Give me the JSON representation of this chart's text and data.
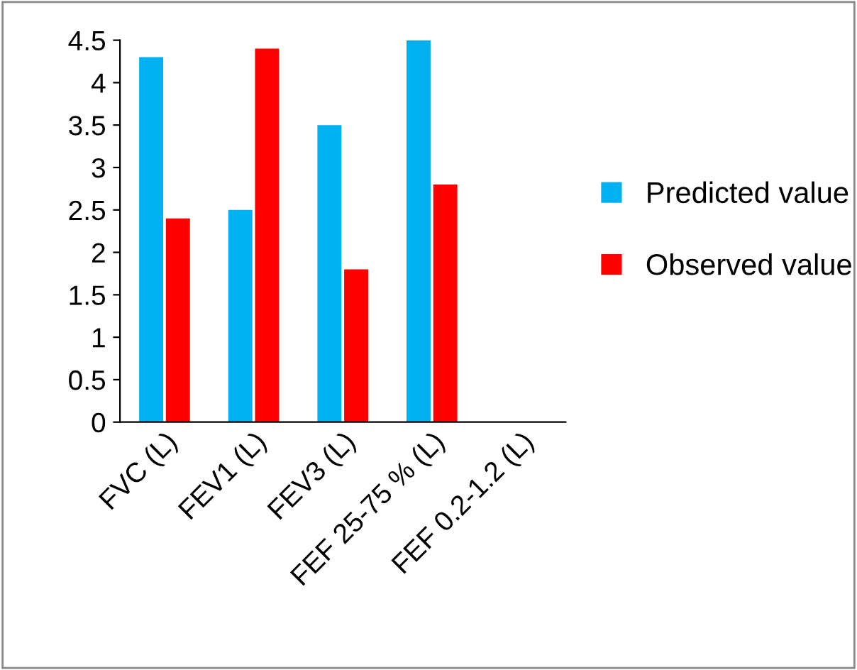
{
  "chart_data": {
    "type": "bar",
    "categories": [
      "FVC (L)",
      "FEV1 (L)",
      "FEV3 (L)",
      "FEF 25-75 % (L)",
      "FEF 0.2-1.2 (L)"
    ],
    "series": [
      {
        "name": "Predicted value",
        "color": "#00b0f0",
        "values": [
          4.3,
          2.5,
          3.5,
          4.5,
          null
        ]
      },
      {
        "name": "Observed value",
        "color": "#ff0000",
        "values": [
          2.4,
          4.4,
          1.8,
          2.8,
          null
        ]
      }
    ],
    "ylim": [
      0,
      4.5
    ],
    "yticks": [
      0,
      0.5,
      1,
      1.5,
      2,
      2.5,
      3,
      3.5,
      4,
      4.5
    ],
    "grid": false,
    "legend": "right"
  }
}
